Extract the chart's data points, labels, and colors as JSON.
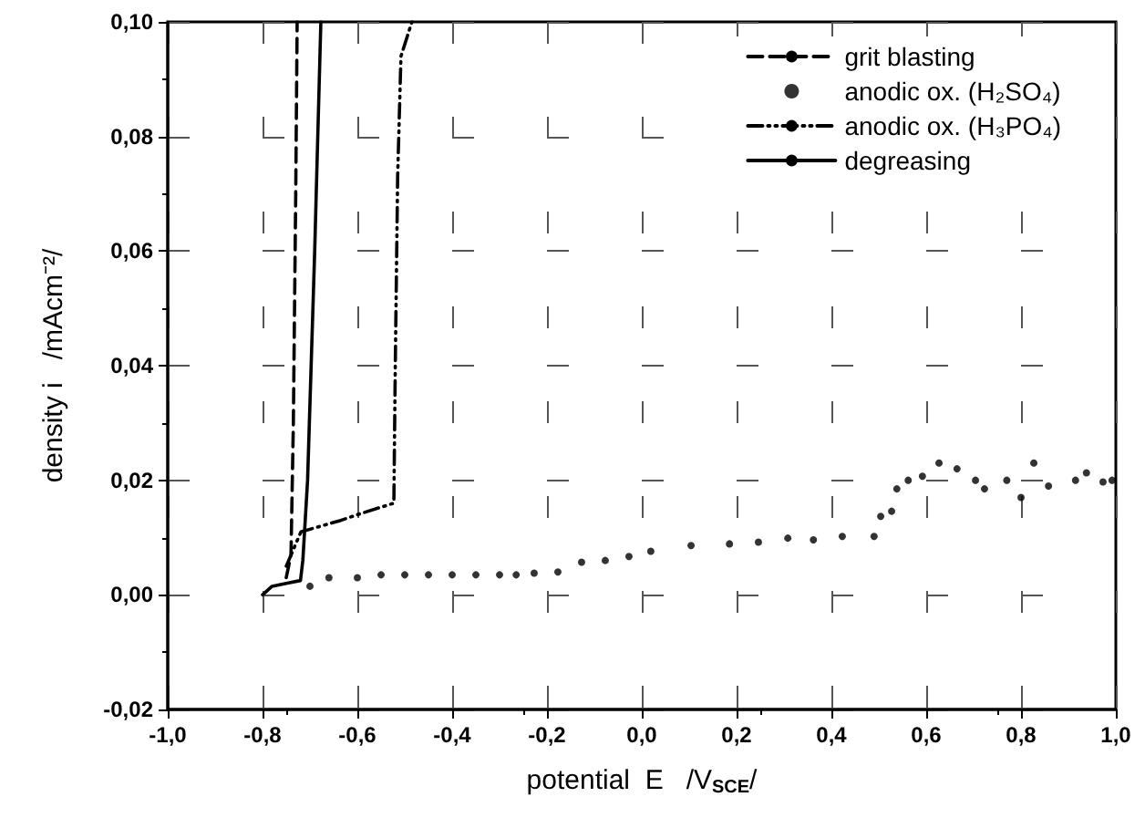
{
  "chart_data": {
    "type": "line",
    "xlabel": "potential  E   /V$_{SCE}$/",
    "ylabel": "density i   /mAcm⁻²/",
    "xlim": [
      -1,
      1
    ],
    "xticks": [
      {
        "value": -1,
        "label": "-1,0"
      },
      {
        "value": -0.8,
        "label": "-0,8"
      },
      {
        "value": -0.6,
        "label": "-0,6"
      },
      {
        "value": -0.4,
        "label": "-0,4"
      },
      {
        "value": -0.2,
        "label": "-0,2"
      },
      {
        "value": 0,
        "label": "0,0"
      },
      {
        "value": 0.2,
        "label": "0,2"
      },
      {
        "value": 0.4,
        "label": "0,4"
      },
      {
        "value": 0.6,
        "label": "0,6"
      },
      {
        "value": 0.8,
        "label": "0,8"
      },
      {
        "value": 1,
        "label": "1,0"
      }
    ],
    "ylim": [
      -0.02,
      0.1
    ],
    "yticks": [
      {
        "value": -0.02,
        "label": "-0,02"
      },
      {
        "value": 0,
        "label": "0,00"
      },
      {
        "value": 0.02,
        "label": "0,02"
      },
      {
        "value": 0.04,
        "label": "0,04"
      },
      {
        "value": 0.06,
        "label": "0,06"
      },
      {
        "value": 0.08,
        "label": "0,08"
      },
      {
        "value": 0.1,
        "label": "0,10"
      }
    ],
    "grid": true,
    "legend": "top right",
    "series": [
      {
        "name": "grit blasting",
        "color": "#000000",
        "line_style": "dashed",
        "marker": "none",
        "x": [
          -0.75,
          -0.74,
          -0.735,
          -0.73,
          -0.727
        ],
        "values": [
          0.003,
          0.007,
          0.03,
          0.07,
          0.1
        ]
      },
      {
        "name": "anodic ox. (H₂SO₄)",
        "color": "#000000",
        "type": "scatter",
        "marker": "circle",
        "x": [
          -0.7,
          -0.66,
          -0.6,
          -0.55,
          -0.5,
          -0.45,
          -0.4,
          -0.35,
          -0.3,
          -0.265,
          -0.227,
          -0.177,
          -0.127,
          -0.077,
          -0.027,
          0.019,
          0.104,
          0.185,
          0.246,
          0.308,
          0.362,
          0.423,
          0.49,
          0.504,
          0.527,
          0.538,
          0.562,
          0.592,
          0.627,
          0.665,
          0.704,
          0.723,
          0.77,
          0.8,
          0.827,
          0.858,
          0.915,
          0.938,
          0.973,
          0.992
        ],
        "values": [
          0.0015,
          0.003,
          0.003,
          0.0035,
          0.0035,
          0.0035,
          0.0035,
          0.0035,
          0.0035,
          0.0035,
          0.0038,
          0.004,
          0.0057,
          0.006,
          0.0067,
          0.0076,
          0.0086,
          0.0089,
          0.0092,
          0.0099,
          0.0096,
          0.0102,
          0.0102,
          0.0137,
          0.0146,
          0.0185,
          0.02,
          0.0207,
          0.023,
          0.022,
          0.02,
          0.0185,
          0.02,
          0.017,
          0.023,
          0.019,
          0.02,
          0.0213,
          0.0197,
          0.02
        ]
      },
      {
        "name": "anodic ox. (H₃PO₄)",
        "color": "#000000",
        "line_style": "dashdotdot",
        "marker": "none",
        "x": [
          -0.75,
          -0.719,
          -0.635,
          -0.6,
          -0.523,
          -0.52,
          -0.515,
          -0.508,
          -0.485
        ],
        "values": [
          0.005,
          0.011,
          0.013,
          0.014,
          0.016,
          0.04,
          0.073,
          0.094,
          0.1
        ]
      },
      {
        "name": "degreasing",
        "color": "#000000",
        "line_style": "solid",
        "marker": "none",
        "x": [
          -0.8,
          -0.78,
          -0.75,
          -0.72,
          -0.715,
          -0.705,
          -0.69,
          -0.677
        ],
        "values": [
          0,
          0.0015,
          0.002,
          0.0025,
          0.006,
          0.02,
          0.06,
          0.1
        ]
      }
    ]
  }
}
